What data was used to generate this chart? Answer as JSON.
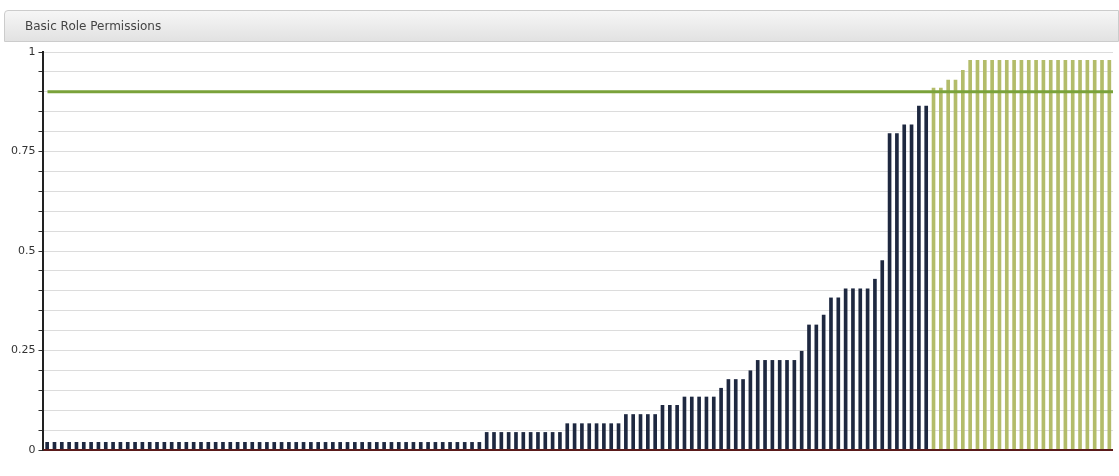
{
  "chart_data": {
    "type": "bar",
    "title": "Basic Role Permissions",
    "categories": [
      null,
      null,
      null,
      null,
      null,
      null,
      null,
      null,
      null,
      null,
      null,
      null,
      null,
      null,
      null,
      null,
      null,
      null,
      null,
      null,
      null,
      null,
      null,
      null,
      null,
      null,
      null,
      null,
      null,
      null,
      null,
      null,
      null,
      null,
      null,
      null,
      null,
      null,
      null,
      null,
      null,
      null,
      null,
      null,
      null,
      null,
      null,
      null,
      null,
      null,
      null,
      null,
      null,
      null,
      null,
      null,
      null,
      null,
      null,
      null,
      null,
      null,
      null,
      null,
      null,
      null,
      null,
      null,
      null,
      null,
      null,
      null,
      null,
      null,
      null,
      null,
      null,
      null,
      null,
      null,
      null,
      null,
      null,
      null,
      null,
      null,
      null,
      null,
      null,
      null,
      null,
      null,
      null,
      null,
      null,
      null,
      null,
      null,
      null,
      null,
      null,
      null,
      null,
      null,
      null,
      null,
      null,
      null,
      null,
      null,
      null,
      null,
      null,
      null,
      null,
      null,
      null,
      null,
      null,
      null,
      null,
      null,
      null,
      null,
      null,
      null,
      null,
      null,
      null,
      null,
      null,
      null,
      null,
      null,
      null,
      null,
      null,
      null,
      null,
      null,
      null,
      null,
      null,
      null,
      null,
      null
    ],
    "series": [
      {
        "color": "#1e2840",
        "values": [
          0.02,
          0.02,
          0.02,
          0.02,
          0.02,
          0.02,
          0.02,
          0.02,
          0.02,
          0.02,
          0.02,
          0.02,
          0.02,
          0.02,
          0.02,
          0.02,
          0.02,
          0.02,
          0.02,
          0.02,
          0.02,
          0.02,
          0.02,
          0.02,
          0.02,
          0.02,
          0.02,
          0.02,
          0.02,
          0.02,
          0.02,
          0.02,
          0.02,
          0.02,
          0.02,
          0.02,
          0.02,
          0.02,
          0.02,
          0.02,
          0.02,
          0.02,
          0.02,
          0.02,
          0.02,
          0.02,
          0.02,
          0.02,
          0.02,
          0.02,
          0.02,
          0.02,
          0.02,
          0.02,
          0.02,
          0.02,
          0.02,
          0.02,
          0.02,
          0.02,
          0.045,
          0.045,
          0.045,
          0.045,
          0.045,
          0.045,
          0.045,
          0.045,
          0.045,
          0.045,
          0.045,
          0.067,
          0.067,
          0.067,
          0.067,
          0.067,
          0.067,
          0.067,
          0.067,
          0.09,
          0.09,
          0.09,
          0.09,
          0.09,
          0.113,
          0.113,
          0.113,
          0.134,
          0.134,
          0.134,
          0.134,
          0.134,
          0.156,
          0.178,
          0.178,
          0.178,
          0.2,
          0.226,
          0.226,
          0.226,
          0.226,
          0.226,
          0.226,
          0.249,
          0.315,
          0.315,
          0.34,
          0.383,
          0.383,
          0.406,
          0.406,
          0.406,
          0.406,
          0.43,
          0.477,
          0.796,
          0.796,
          0.818,
          0.818,
          0.865,
          0.865,
          null,
          null,
          null,
          null,
          null,
          null,
          null,
          null,
          null,
          null,
          null,
          null,
          null,
          null,
          null,
          null,
          null,
          null,
          null,
          null,
          null,
          null,
          null,
          null,
          null
        ]
      },
      {
        "color": "#b3bc6a",
        "values": [
          null,
          null,
          null,
          null,
          null,
          null,
          null,
          null,
          null,
          null,
          null,
          null,
          null,
          null,
          null,
          null,
          null,
          null,
          null,
          null,
          null,
          null,
          null,
          null,
          null,
          null,
          null,
          null,
          null,
          null,
          null,
          null,
          null,
          null,
          null,
          null,
          null,
          null,
          null,
          null,
          null,
          null,
          null,
          null,
          null,
          null,
          null,
          null,
          null,
          null,
          null,
          null,
          null,
          null,
          null,
          null,
          null,
          null,
          null,
          null,
          null,
          null,
          null,
          null,
          null,
          null,
          null,
          null,
          null,
          null,
          null,
          null,
          null,
          null,
          null,
          null,
          null,
          null,
          null,
          null,
          null,
          null,
          null,
          null,
          null,
          null,
          null,
          null,
          null,
          null,
          null,
          null,
          null,
          null,
          null,
          null,
          null,
          null,
          null,
          null,
          null,
          null,
          null,
          null,
          null,
          null,
          null,
          null,
          null,
          null,
          null,
          null,
          null,
          null,
          null,
          null,
          null,
          null,
          null,
          null,
          null,
          0.91,
          0.91,
          0.93,
          0.93,
          0.955,
          0.98,
          0.98,
          0.98,
          0.98,
          0.98,
          0.98,
          0.98,
          0.98,
          0.98,
          0.98,
          0.98,
          0.98,
          0.98,
          0.98,
          0.98,
          0.98,
          0.98,
          0.98,
          0.98,
          0.98
        ]
      }
    ],
    "ylim": [
      0,
      1
    ],
    "yticks": [
      0,
      {
        "value": 0.05,
        "label": null
      },
      {
        "value": 0.1,
        "label": null
      },
      {
        "value": 0.15,
        "label": null
      },
      {
        "value": 0.2,
        "label": null
      },
      0.25,
      {
        "value": 0.3,
        "label": null
      },
      {
        "value": 0.35,
        "label": null
      },
      {
        "value": 0.4,
        "label": null
      },
      {
        "value": 0.45,
        "label": null
      },
      0.5,
      {
        "value": 0.55,
        "label": null
      },
      {
        "value": 0.6,
        "label": null
      },
      {
        "value": 0.65,
        "label": null
      },
      {
        "value": 0.7,
        "label": null
      },
      0.75,
      {
        "value": 0.8,
        "label": null
      },
      {
        "value": 0.85,
        "label": null
      },
      {
        "value": 0.9,
        "label": null
      },
      {
        "value": 0.95,
        "label": null
      },
      1
    ],
    "grid": "y",
    "tick_labels": "y",
    "ref_lines": [
      {
        "axis": "y",
        "value": 0.9,
        "color": "#7aa23a"
      }
    ]
  }
}
